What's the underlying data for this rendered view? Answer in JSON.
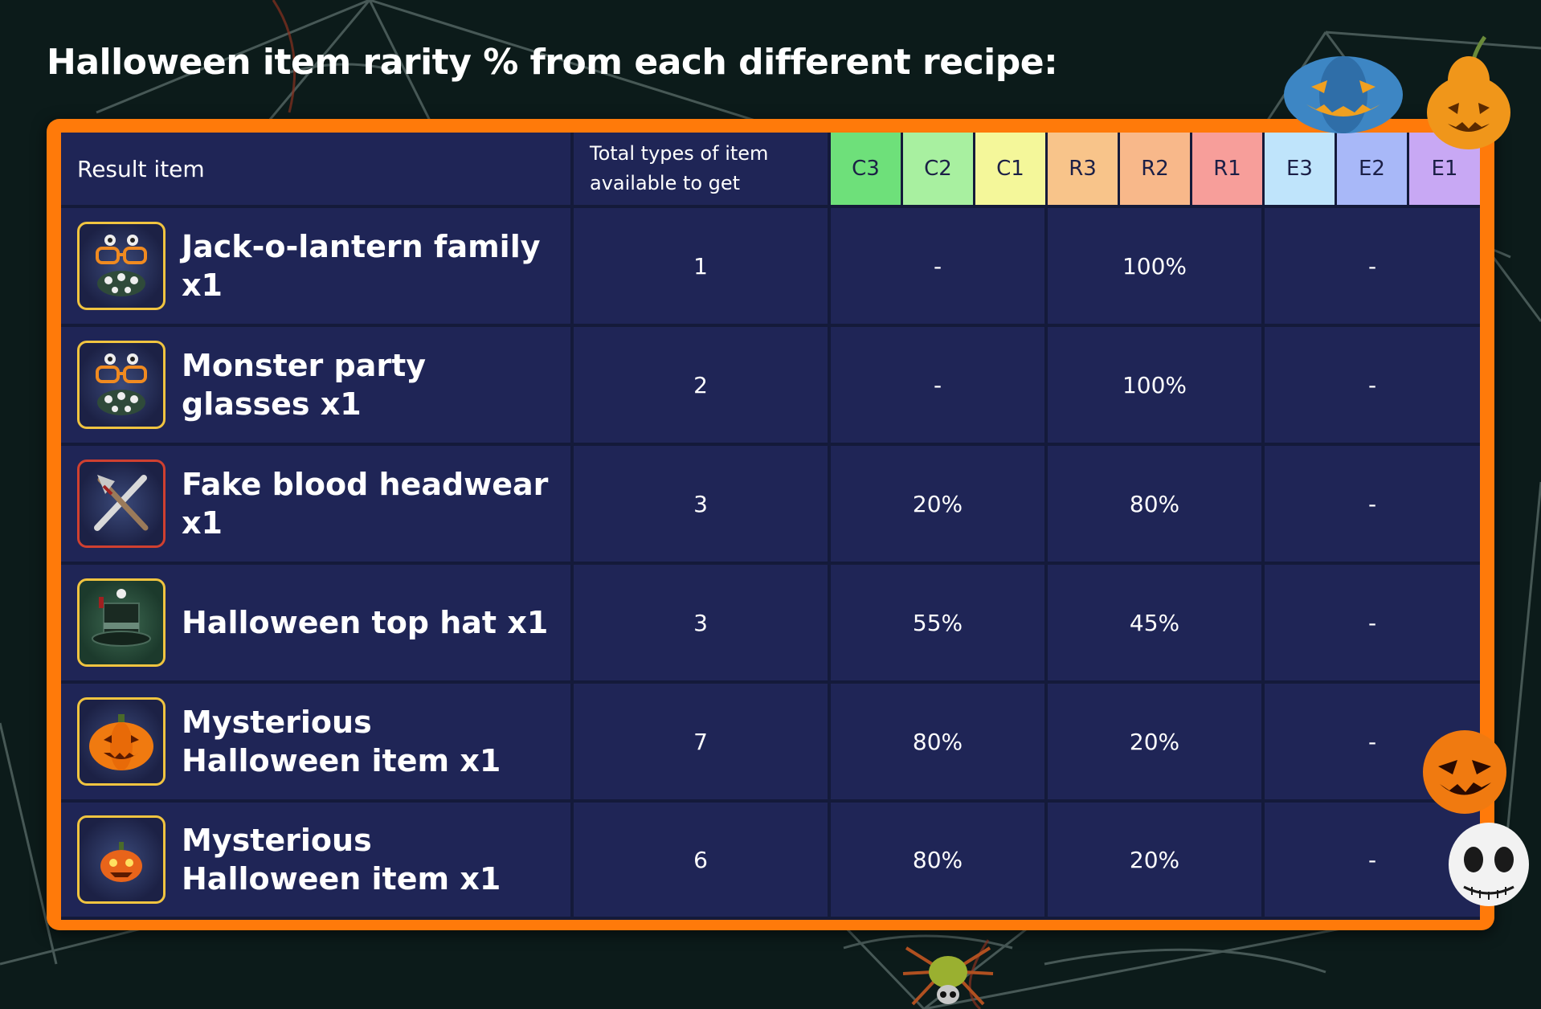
{
  "title": "Halloween item rarity % from each different recipe:",
  "colors": {
    "frame": "#ff7a0a",
    "cell": "#1f2556",
    "grid": "#141a3a",
    "icon_border_gold": "#f0c440",
    "icon_border_red": "#d04030",
    "rarity": {
      "C3": "#6ee07a",
      "C2": "#a8f0a0",
      "C1": "#f4f79a",
      "R3": "#f8c48a",
      "R2": "#f8b88a",
      "R1": "#f79e9a",
      "E3": "#bfe4fb",
      "E2": "#a8b8f8",
      "E1": "#c8a8f4"
    }
  },
  "table": {
    "header": {
      "result_item": "Result item",
      "total_types": "Total types of item available to get",
      "rarities": [
        "C3",
        "C2",
        "C1",
        "R3",
        "R2",
        "R1",
        "E3",
        "E2",
        "E1"
      ]
    },
    "rows": [
      {
        "item": "Jack-o-lantern family x1",
        "icon": "monster-party-glasses-icon",
        "total": "1",
        "common": "-",
        "rare": "100%",
        "epic": "-"
      },
      {
        "item": "Monster party glasses x1",
        "icon": "monster-party-glasses-icon",
        "total": "2",
        "common": "-",
        "rare": "100%",
        "epic": "-"
      },
      {
        "item": "Fake blood headwear x1",
        "icon": "crossed-axe-icon",
        "total": "3",
        "common": "20%",
        "rare": "80%",
        "epic": "-"
      },
      {
        "item": "Halloween top hat x1",
        "icon": "top-hat-icon",
        "total": "3",
        "common": "55%",
        "rare": "45%",
        "epic": "-"
      },
      {
        "item": "Mysterious Halloween item x1",
        "icon": "pumpkin-icon",
        "total": "7",
        "common": "80%",
        "rare": "20%",
        "epic": "-"
      },
      {
        "item": "Mysterious Halloween item x1",
        "icon": "small-pumpkin-icon",
        "total": "6",
        "common": "80%",
        "rare": "20%",
        "epic": "-"
      }
    ]
  }
}
